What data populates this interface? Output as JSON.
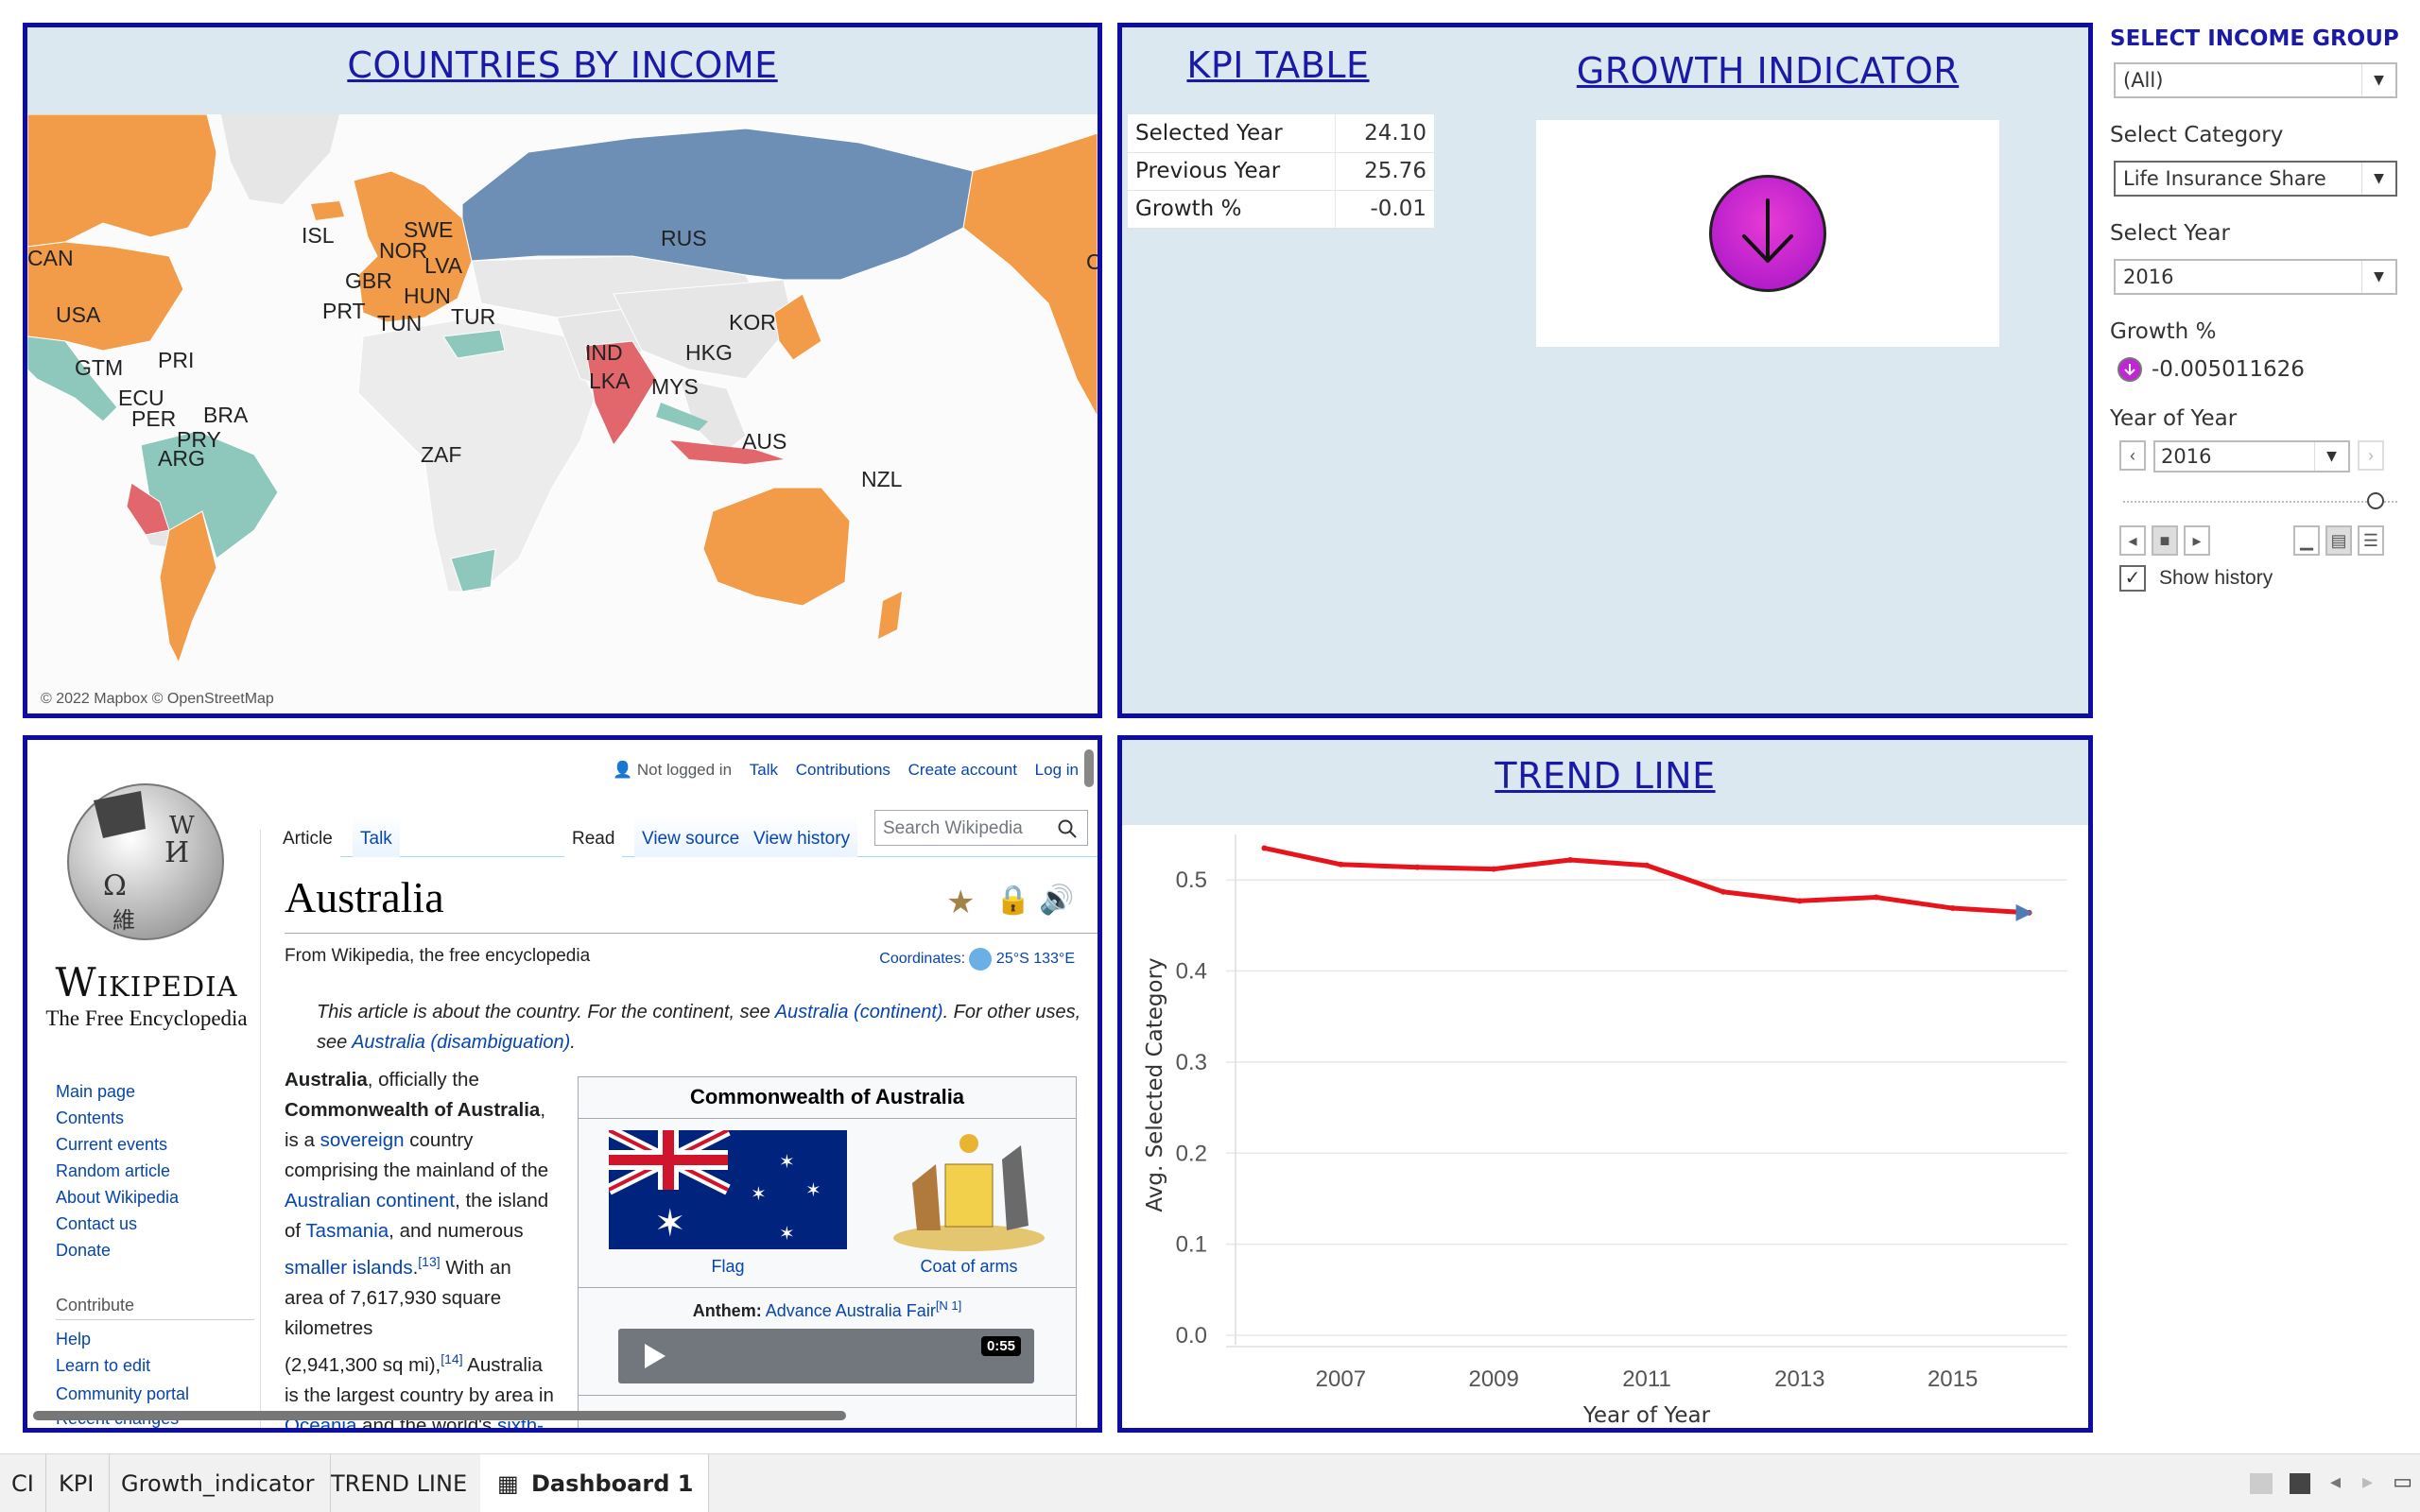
{
  "map": {
    "title": "COUNTRIES BY INCOME",
    "credit": "© 2022 Mapbox © OpenStreetMap",
    "labels": [
      "CAN",
      "USA",
      "ISL",
      "SWE",
      "NOR",
      "LVA",
      "GBR",
      "HUN",
      "PRT",
      "TUN",
      "TUR",
      "RUS",
      "KOR",
      "HKG",
      "IND",
      "LKA",
      "MYS",
      "GTM",
      "PRI",
      "ECU",
      "PER",
      "BRA",
      "PRY",
      "ARG",
      "ZAF",
      "AUS",
      "NZL",
      "C"
    ],
    "colors": {
      "high": "#f29c4a",
      "upper_middle": "#8ec7bc",
      "lower_middle": "#e1676d",
      "russia": "#6d8fb6",
      "no_data": "#e6e6e6",
      "ocean": "#fbfbfb"
    }
  },
  "kpi": {
    "title": "KPI TABLE",
    "rows": [
      {
        "label": "Selected Year",
        "value": "24.10"
      },
      {
        "label": "Previous Year",
        "value": "25.76"
      },
      {
        "label": "Growth %",
        "value": "-0.01"
      }
    ]
  },
  "growth": {
    "title": "GROWTH INDICATOR",
    "direction": "down",
    "indicator_color": "#c026d3"
  },
  "sidebar": {
    "income_group_heading": "SELECT INCOME GROUP",
    "income_group_value": "(All)",
    "category_heading": "Select Category",
    "category_value": "Life Insurance Share",
    "year_heading": "Select Year",
    "year_value": "2016",
    "growth_heading": "Growth %",
    "growth_value": "-0.005011626",
    "year_of_year_heading": "Year of Year",
    "year_of_year_value": "2016",
    "show_history_label": "Show history",
    "show_history_checked": "✓"
  },
  "wiki": {
    "not_logged_in": "Not logged in",
    "user_links": [
      "Talk",
      "Contributions",
      "Create account",
      "Log in"
    ],
    "tabs": [
      "Article",
      "Talk",
      "Read",
      "View source",
      "View history"
    ],
    "search_placeholder": "Search Wikipedia",
    "wordmark": "Wikipedia",
    "tagline": "The Free Encyclopedia",
    "article_title": "Australia",
    "from_line": "From Wikipedia, the free encyclopedia",
    "coordinates_label": "Coordinates:",
    "coordinates_value": "25°S 133°E",
    "hatnote_1": "This article is about the country. For the continent, see ",
    "hatnote_link_1": "Australia (continent)",
    "hatnote_2": ". For other uses, see ",
    "hatnote_link_2": "Australia (disambiguation)",
    "hatnote_3": ".",
    "nav_links": [
      "Main page",
      "Contents",
      "Current events",
      "Random article",
      "About Wikipedia",
      "Contact us",
      "Donate"
    ],
    "contribute_heading": "Contribute",
    "contribute_links": [
      "Help",
      "Learn to edit",
      "Community portal",
      "Recent changes"
    ],
    "infobox_title": "Commonwealth of Australia",
    "flag_caption": "Flag",
    "arms_caption": "Coat of arms",
    "anthem_label": "Anthem:",
    "anthem_link": "Advance Australia Fair",
    "anthem_note": "[N 1]",
    "audio_time": "0:55",
    "body_lines": [
      {
        "b": "Australia",
        "t": ", officially the"
      },
      {
        "b": "Commonwealth of Australia",
        "t": ","
      },
      {
        "t": "is a ",
        "l": "sovereign",
        "t2": " country"
      },
      {
        "t": "comprising the mainland of the"
      },
      {
        "l": "Australian continent",
        "t2": ", the island"
      },
      {
        "t": "of ",
        "l": "Tasmania",
        "t2": ", and numerous"
      },
      {
        "l": "smaller islands",
        "t2": ".",
        "s": "[13]",
        "t3": " With an"
      },
      {
        "t": "area of 7,617,930 square"
      },
      {
        "t": "kilometres"
      },
      {
        "t": "(2,941,300 sq mi),",
        "s": "[14]",
        "t3": " Australia"
      },
      {
        "t": "is the largest country by area in"
      },
      {
        "l": "Oceania",
        "t2": " and the world's ",
        "l2": "sixth-"
      }
    ]
  },
  "chart_data": {
    "type": "line",
    "title": "TREND LINE",
    "xlabel": "Year of Year",
    "ylabel": "Avg. Selected Category",
    "x": [
      2006,
      2007,
      2008,
      2009,
      2010,
      2011,
      2012,
      2013,
      2014,
      2015,
      2016
    ],
    "x_ticks": [
      "2007",
      "2009",
      "2011",
      "2013",
      "2015"
    ],
    "y_ticks": [
      "0.0",
      "0.1",
      "0.2",
      "0.3",
      "0.4",
      "0.5"
    ],
    "ylim": [
      0,
      0.55
    ],
    "series": [
      {
        "values": [
          0.535,
          0.517,
          0.514,
          0.512,
          0.522,
          0.516,
          0.487,
          0.477,
          0.481,
          0.469,
          0.464
        ],
        "color": "#e8141c"
      }
    ],
    "grid": true
  },
  "tabs": [
    {
      "label": "CI"
    },
    {
      "label": "KPI"
    },
    {
      "label": "Growth_indicator"
    },
    {
      "label": "TREND LINE"
    },
    {
      "label": "Dashboard 1",
      "active": true
    }
  ]
}
